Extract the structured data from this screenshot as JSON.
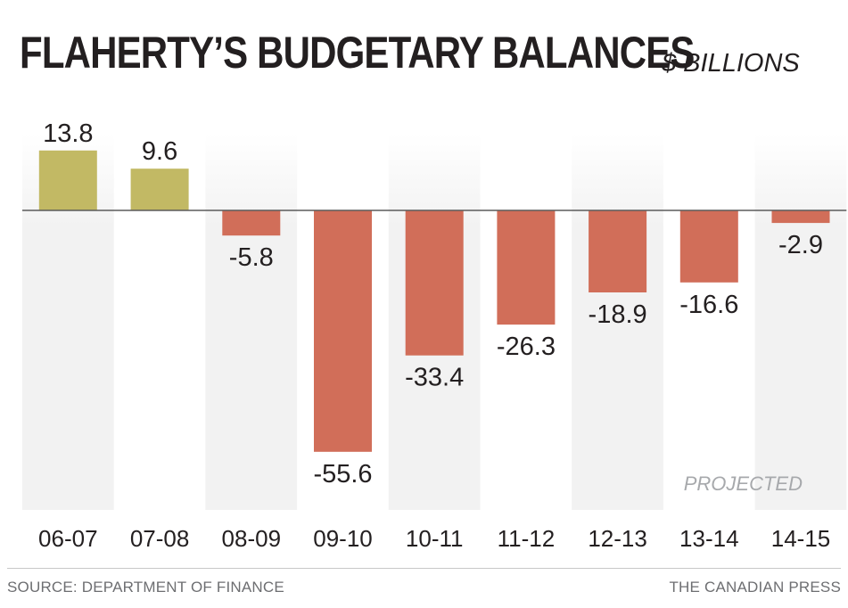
{
  "chart_data": {
    "type": "bar",
    "title": "FLAHERTY’S BUDGETARY BALANCES",
    "subtitle": "$ BILLIONS",
    "categories": [
      "06-07",
      "07-08",
      "08-09",
      "09-10",
      "10-11",
      "11-12",
      "12-13",
      "13-14",
      "14-15"
    ],
    "values": [
      13.8,
      9.6,
      -5.8,
      -55.6,
      -33.4,
      -26.3,
      -18.9,
      -16.6,
      -2.9
    ],
    "value_labels": [
      "13.8",
      "9.6",
      "-5.8",
      "-55.6",
      "-33.4",
      "-26.3",
      "-18.9",
      "-16.6",
      "-2.9"
    ],
    "projected_from_index": 6,
    "projected_label": "PROJECTED",
    "xlabel": "",
    "ylabel": "",
    "ylim": [
      -69,
      18
    ],
    "colors": {
      "surplus": "#c2b964",
      "deficit": "#d16e59",
      "column_shade": "#f3f3f3",
      "baseline": "#5b5b5b",
      "text": "#231f20",
      "muted": "#a7a9ac"
    }
  },
  "footer": {
    "source": "SOURCE: DEPARTMENT OF FINANCE",
    "credit": "THE CANADIAN PRESS"
  }
}
